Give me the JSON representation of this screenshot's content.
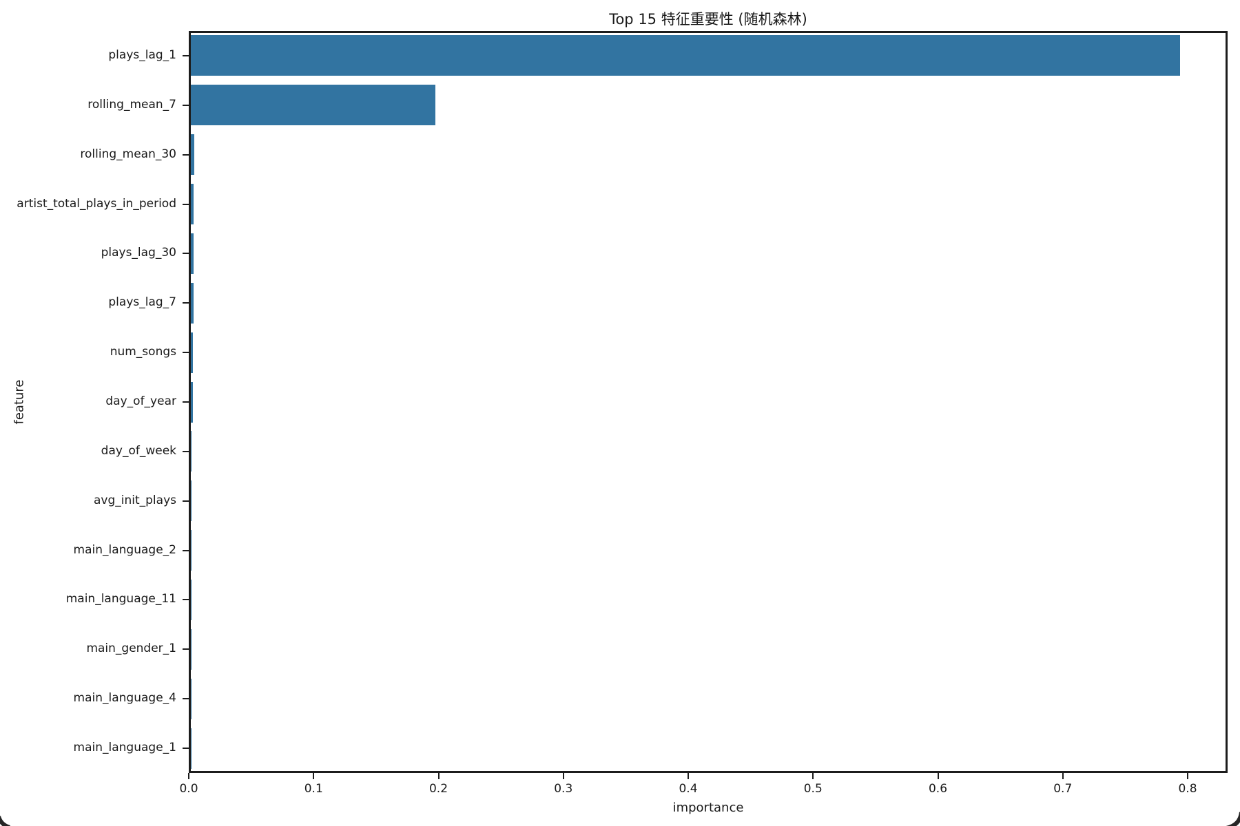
{
  "chart_data": {
    "type": "bar",
    "orientation": "horizontal",
    "title": "Top 15 特征重要性 (随机森林)",
    "xlabel": "importance",
    "ylabel": "feature",
    "categories": [
      "plays_lag_1",
      "rolling_mean_7",
      "rolling_mean_30",
      "artist_total_plays_in_period",
      "plays_lag_30",
      "plays_lag_7",
      "num_songs",
      "day_of_year",
      "day_of_week",
      "avg_init_plays",
      "main_language_2",
      "main_language_11",
      "main_gender_1",
      "main_language_4",
      "main_language_1"
    ],
    "values": [
      0.792,
      0.196,
      0.0025,
      0.0024,
      0.0023,
      0.0022,
      0.0018,
      0.0018,
      0.0008,
      0.0006,
      0.0004,
      0.0003,
      0.0003,
      0.0002,
      0.0002
    ],
    "xticks": [
      0.0,
      0.1,
      0.2,
      0.3,
      0.4,
      0.5,
      0.6,
      0.7,
      0.8
    ],
    "xtick_labels": [
      "0.0",
      "0.1",
      "0.2",
      "0.3",
      "0.4",
      "0.5",
      "0.6",
      "0.7",
      "0.8"
    ],
    "xlim": [
      0,
      0.832
    ],
    "grid": false,
    "legend_position": "none",
    "bar_color": "#3274a1",
    "axis_color": "#1c1c1c",
    "text_color": "#1a1a1a",
    "background_color": "#ffffff"
  }
}
